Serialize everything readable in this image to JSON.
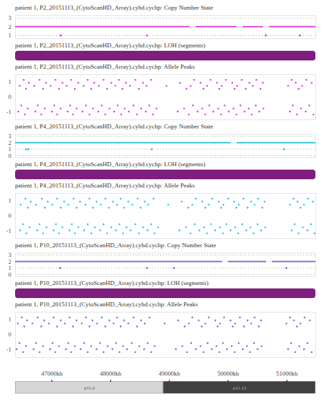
{
  "chart_data": [
    {
      "type": "line",
      "title": "patient 1, P2_20151113_(CytoScanHD_Array).cyhd.cychp: Copy Number State",
      "color": "#dd44dd",
      "grid": true,
      "tick_labels": "y",
      "xlim": [
        46380,
        51490
      ],
      "ylim": [
        0.6,
        3.3
      ],
      "yticks": [
        1,
        2,
        3
      ],
      "segments": [
        {
          "start": 46380,
          "end": 49350,
          "state": 2
        },
        {
          "start": 49450,
          "end": 50150,
          "state": 2
        },
        {
          "start": 50250,
          "end": 50600,
          "state": 2
        },
        {
          "start": 50700,
          "end": 51490,
          "state": 2
        }
      ],
      "points": [
        {
          "x": 47150,
          "state": 1
        },
        {
          "x": 48620,
          "state": 1
        },
        {
          "x": 50640,
          "state": 1
        },
        {
          "x": 51220,
          "state": 1
        }
      ]
    },
    {
      "type": "bar",
      "title": "patient 1, P2_20151113_(CytoScanHD_Array).cyhd.cychp: LOH (segments)",
      "color": "#7d1f7d",
      "tick_labels": false,
      "xlim": [
        46380,
        51490
      ],
      "segments": [
        {
          "start": 46380,
          "end": 51490
        }
      ]
    },
    {
      "type": "scatter",
      "title": "patient 1, P2_20151113_(CytoScanHD_Array).cyhd.cychp: Allele Peaks",
      "color": "#dd44dd",
      "tick_labels": "y",
      "xlim": [
        46380,
        51490
      ],
      "ylim": [
        -1.5,
        1.5
      ],
      "yticks": [
        1,
        0,
        -1
      ],
      "peaks": [
        {
          "y": 1.15,
          "x": [
            46520,
            46790,
            47060,
            47330,
            47610,
            47880,
            48140,
            48420,
            48690,
            49420,
            49700,
            49960,
            50230,
            50480,
            51080,
            51330
          ]
        },
        {
          "y": 0.95,
          "x": [
            46610,
            46900,
            47180,
            47450,
            47720,
            48010,
            48260,
            48550,
            49180,
            49530,
            49810,
            50070,
            50360,
            50590,
            51150,
            51420
          ]
        },
        {
          "y": 0.75,
          "x": [
            46450,
            46700,
            46980,
            47250,
            47540,
            47800,
            48080,
            48330,
            48610,
            48950,
            49360,
            49640,
            49890,
            50150,
            50420,
            51020,
            51260
          ]
        },
        {
          "y": 0.55,
          "x": [
            46560,
            46850,
            47120,
            47390,
            47670,
            47940,
            48200,
            48480,
            49290,
            49580,
            49850,
            50110,
            50300,
            50550,
            51200
          ]
        },
        {
          "y": -0.55,
          "x": [
            46480,
            46760,
            47040,
            47310,
            47580,
            47850,
            48120,
            48390,
            48660,
            49400,
            49680,
            49940,
            50210,
            50470,
            51100,
            51380
          ]
        },
        {
          "y": -0.75,
          "x": [
            46590,
            46880,
            47150,
            47420,
            47700,
            47980,
            48240,
            48520,
            48780,
            49250,
            49560,
            49830,
            50090,
            50350,
            50600,
            51240
          ]
        },
        {
          "y": -0.95,
          "x": [
            46430,
            46720,
            47000,
            47270,
            47520,
            47790,
            48060,
            48310,
            48600,
            49140,
            49480,
            49750,
            50010,
            50280,
            50530,
            51050,
            51320
          ]
        },
        {
          "y": -1.15,
          "x": [
            46540,
            46820,
            47090,
            47360,
            47640,
            47910,
            48180,
            48450,
            48720,
            49330,
            49610,
            49880,
            50140,
            50400,
            51170,
            51450
          ]
        }
      ]
    },
    {
      "type": "line",
      "title": "patient 1, P4_20151113_(CytoScanHD_Array).cyhd.cychp: Copy Number State",
      "color": "#33c4d8",
      "grid": true,
      "tick_labels": "y",
      "xlim": [
        46380,
        51490
      ],
      "ylim": [
        -0.3,
        3.3
      ],
      "yticks": [
        0,
        1,
        2,
        3
      ],
      "segments": [
        {
          "start": 46380,
          "end": 50050,
          "state": 2
        },
        {
          "start": 50150,
          "end": 51490,
          "state": 2
        }
      ],
      "points": [
        {
          "x": 46560,
          "state": 1
        },
        {
          "x": 46600,
          "state": 1
        },
        {
          "x": 48700,
          "state": 1
        },
        {
          "x": 50950,
          "state": 1
        }
      ]
    },
    {
      "type": "bar",
      "title": "patient 1, P4_20151113_(CytoScanHD_Array).cyhd.cychp: LOH (segments)",
      "color": "#7d1f7d",
      "tick_labels": false,
      "xlim": [
        46380,
        51490
      ],
      "segments": [
        {
          "start": 46380,
          "end": 51490
        }
      ]
    },
    {
      "type": "scatter",
      "title": "patient 1, P4_20151113_(CytoScanHD_Array).cyhd.cychp: Allele Peaks",
      "color": "#33c4d8",
      "tick_labels": "y",
      "xlim": [
        46380,
        51490
      ],
      "ylim": [
        -1.5,
        1.5
      ],
      "yticks": [
        1,
        0,
        -1
      ],
      "peaks": [
        {
          "y": 1.15,
          "x": [
            46550,
            46830,
            47090,
            47370,
            47640,
            47910,
            48170,
            48460,
            48730,
            49450,
            49730,
            50000,
            50260,
            50510,
            51110,
            51360
          ]
        },
        {
          "y": 0.95,
          "x": [
            46640,
            46930,
            47210,
            47480,
            47760,
            48040,
            48300,
            48580,
            49210,
            49560,
            49840,
            50100,
            50390,
            50620,
            51180,
            51440
          ]
        },
        {
          "y": 0.75,
          "x": [
            46470,
            46730,
            47010,
            47280,
            47570,
            47830,
            48110,
            48370,
            48640,
            48980,
            49390,
            49670,
            49920,
            50180,
            50450,
            51050,
            51290
          ]
        },
        {
          "y": 0.55,
          "x": [
            46590,
            46880,
            47150,
            47420,
            47700,
            47970,
            48230,
            48510,
            49320,
            49610,
            49880,
            50140,
            50330,
            50580,
            51230
          ]
        },
        {
          "y": -0.55,
          "x": [
            46510,
            46790,
            47070,
            47340,
            47610,
            47880,
            48150,
            48420,
            48690,
            49430,
            49710,
            49970,
            50240,
            50500,
            51130,
            51410
          ]
        },
        {
          "y": -0.75,
          "x": [
            46620,
            46910,
            47180,
            47450,
            47730,
            48010,
            48270,
            48550,
            48810,
            49280,
            49590,
            49860,
            50120,
            50380,
            50630,
            51270
          ]
        },
        {
          "y": -0.95,
          "x": [
            46460,
            46750,
            47030,
            47300,
            47550,
            47820,
            48090,
            48340,
            48630,
            49170,
            49510,
            49780,
            50040,
            50310,
            50560,
            51080,
            51350
          ]
        },
        {
          "y": -1.15,
          "x": [
            46570,
            46850,
            47120,
            47390,
            47670,
            47940,
            48210,
            48480,
            48750,
            49360,
            49640,
            49910,
            50170,
            50430,
            51200,
            51470
          ]
        }
      ]
    },
    {
      "type": "line",
      "title": "patient 1, P10_20151113_(CytoScanHD_Array).cyhd.cychp: Copy Number State",
      "color": "#8a6ad8",
      "grid": true,
      "tick_labels": "y",
      "xlim": [
        46380,
        51490
      ],
      "ylim": [
        -0.3,
        3.3
      ],
      "yticks": [
        0,
        1,
        2,
        3
      ],
      "segments": [
        {
          "start": 46380,
          "end": 49900,
          "state": 2
        },
        {
          "start": 50000,
          "end": 50650,
          "state": 2
        },
        {
          "start": 50750,
          "end": 51490,
          "state": 2
        }
      ],
      "points": [
        {
          "x": 47140,
          "state": 1
        },
        {
          "x": 48620,
          "state": 1
        },
        {
          "x": 49080,
          "state": 1
        },
        {
          "x": 50990,
          "state": 1
        }
      ]
    },
    {
      "type": "bar",
      "title": "patient 1, P10_20151113_(CytoScanHD_Array).cyhd.cychp: LOH (segments)",
      "color": "#7d1f7d",
      "tick_labels": false,
      "xlim": [
        46380,
        51490
      ],
      "segments": [
        {
          "start": 46380,
          "end": 51490
        }
      ]
    },
    {
      "type": "scatter",
      "title": "patient 1, P10_20151113_(CytoScanHD_Array).cyhd.cychp: Allele Peaks",
      "color": "#8a6ad8",
      "tick_labels": "y",
      "xlim": [
        46380,
        51490
      ],
      "ylim": [
        -1.5,
        1.5
      ],
      "yticks": [
        1,
        0,
        -1
      ],
      "peaks": [
        {
          "y": 1.15,
          "x": [
            46490,
            46760,
            47030,
            47300,
            47580,
            47850,
            48110,
            48390,
            48660,
            49390,
            49670,
            49930,
            50200,
            50450,
            51050,
            51300
          ]
        },
        {
          "y": 0.95,
          "x": [
            46580,
            46870,
            47150,
            47420,
            47690,
            47980,
            48230,
            48520,
            49150,
            49500,
            49780,
            50040,
            50330,
            50560,
            51120,
            51390
          ]
        },
        {
          "y": 0.75,
          "x": [
            46420,
            46670,
            46950,
            47220,
            47510,
            47770,
            48050,
            48300,
            48580,
            48920,
            49330,
            49610,
            49860,
            50120,
            50390,
            50990,
            51230
          ]
        },
        {
          "y": 0.55,
          "x": [
            46530,
            46820,
            47090,
            47360,
            47640,
            47910,
            48170,
            48450,
            49260,
            49550,
            49820,
            50080,
            50270,
            50520,
            51170
          ]
        },
        {
          "y": -0.55,
          "x": [
            46450,
            46730,
            47010,
            47280,
            47550,
            47820,
            48090,
            48360,
            48630,
            49370,
            49650,
            49910,
            50180,
            50440,
            51070,
            51350
          ]
        },
        {
          "y": -0.75,
          "x": [
            46560,
            46850,
            47120,
            47390,
            47670,
            47950,
            48210,
            48490,
            48750,
            49220,
            49530,
            49800,
            50060,
            50320,
            50570,
            51210
          ]
        },
        {
          "y": -0.95,
          "x": [
            46400,
            46690,
            46970,
            47240,
            47490,
            47760,
            48030,
            48280,
            48570,
            49110,
            49450,
            49720,
            49980,
            50250,
            50500,
            51020,
            51290
          ]
        },
        {
          "y": -1.15,
          "x": [
            46510,
            46790,
            47060,
            47330,
            47610,
            47880,
            48150,
            48420,
            48690,
            49300,
            49580,
            49850,
            50110,
            50370,
            51140,
            51420
          ]
        }
      ]
    },
    {
      "type": "ideogram",
      "tick_labels": "x",
      "xlim": [
        46380,
        51490
      ],
      "xticks": [
        {
          "value": 47000,
          "label": "47000kb"
        },
        {
          "value": 48000,
          "label": "48000kb"
        },
        {
          "value": 49000,
          "label": "49000kb"
        },
        {
          "value": 50000,
          "label": "50000kb"
        },
        {
          "value": 51000,
          "label": "51000kb"
        }
      ],
      "bands": [
        {
          "name": "p11.2",
          "start": 46380,
          "end": 48900,
          "color": "#d6d6d6"
        },
        {
          "name": "p11.12",
          "start": 48900,
          "end": 51490,
          "color": "#404040"
        }
      ]
    }
  ]
}
